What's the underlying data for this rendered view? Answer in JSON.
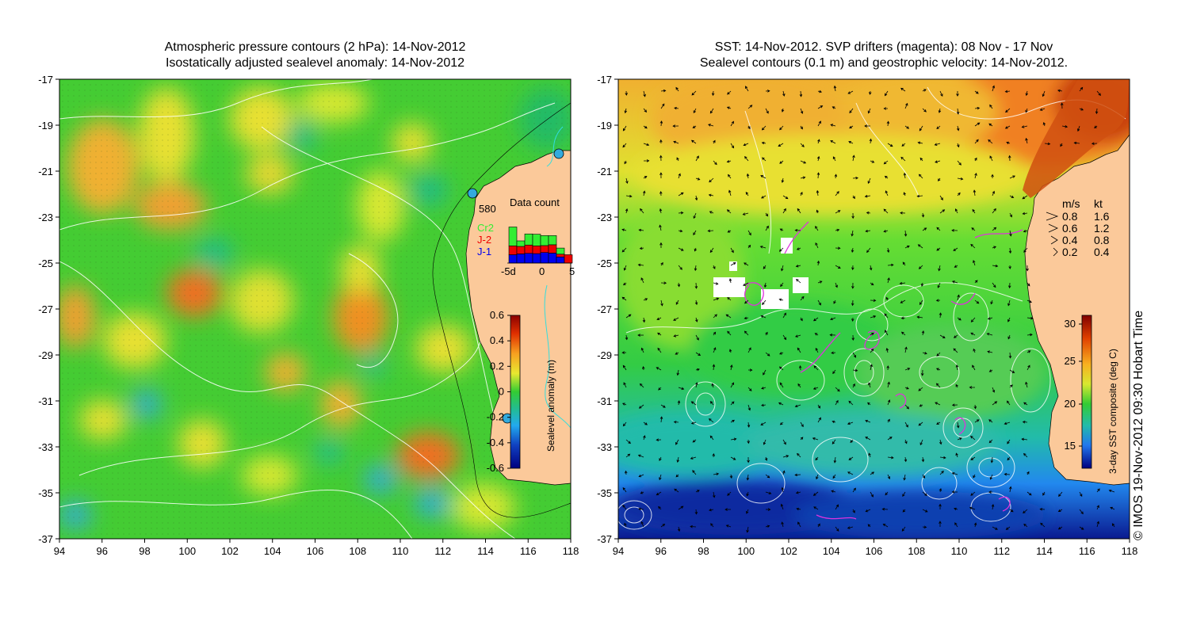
{
  "left_panel": {
    "title_line1": "Atmospheric pressure contours (2 hPa): 14-Nov-2012",
    "title_line2": "Isostatically adjusted sealevel anomaly: 14-Nov-2012",
    "x_ticks": [
      "94",
      "96",
      "98",
      "100",
      "102",
      "104",
      "106",
      "108",
      "110",
      "112",
      "114",
      "116",
      "118"
    ],
    "y_ticks": [
      "-17",
      "-19",
      "-21",
      "-23",
      "-25",
      "-27",
      "-29",
      "-31",
      "-33",
      "-35",
      "-37"
    ],
    "station_label": "580",
    "data_count": {
      "title": "Data count",
      "legend": [
        "Cr2",
        "J-2",
        "J-1"
      ],
      "x_labels": [
        "-5d",
        "0",
        "5"
      ],
      "colors": {
        "Cr2": "#33ee33",
        "J-2": "#ee0000",
        "J-1": "#0000ee"
      },
      "bars": [
        {
          "J-1": 0.3,
          "J-2": 0.32,
          "Cr2": 0.68
        },
        {
          "J-1": 0.33,
          "J-2": 0.27,
          "Cr2": 0.2
        },
        {
          "J-1": 0.35,
          "J-2": 0.3,
          "Cr2": 0.4
        },
        {
          "J-1": 0.34,
          "J-2": 0.28,
          "Cr2": 0.42
        },
        {
          "J-1": 0.38,
          "J-2": 0.25,
          "Cr2": 0.36
        },
        {
          "J-1": 0.36,
          "J-2": 0.3,
          "Cr2": 0.33
        },
        {
          "J-1": 0.22,
          "J-2": 0.1,
          "Cr2": 0.22
        },
        {
          "J-1": 0.0,
          "J-2": 0.3,
          "Cr2": 0.0
        }
      ]
    },
    "colorbar": {
      "label": "Sealevel anomaly (m)",
      "ticks": [
        "0.6",
        "0.4",
        "0.2",
        "0",
        "-0.2",
        "-0.4",
        "-0.6"
      ]
    }
  },
  "right_panel": {
    "title_line1": "SST: 14-Nov-2012. SVP drifters (magenta): 08 Nov - 17 Nov",
    "title_line2": "Sealevel contours (0.1 m) and geostrophic velocity: 14-Nov-2012.",
    "x_ticks": [
      "94",
      "96",
      "98",
      "100",
      "102",
      "104",
      "106",
      "108",
      "110",
      "112",
      "114",
      "116",
      "118"
    ],
    "y_ticks": [
      "-17",
      "-19",
      "-21",
      "-23",
      "-25",
      "-27",
      "-29",
      "-31",
      "-33",
      "-35",
      "-37"
    ],
    "velocity_legend": {
      "header_ms": "m/s",
      "header_kt": "kt",
      "rows": [
        {
          "ms": "0.8",
          "kt": "1.6"
        },
        {
          "ms": "0.6",
          "kt": "1.2"
        },
        {
          "ms": "0.4",
          "kt": "0.8"
        },
        {
          "ms": "0.2",
          "kt": "0.4"
        }
      ]
    },
    "colorbar": {
      "label": "3-day SST composite (deg C)",
      "ticks": [
        "30",
        "25",
        "20",
        "15"
      ]
    }
  },
  "credit": "© IMOS 19-Nov-2012 09:30 Hobart Time",
  "colors": {
    "land": "#fbc99a",
    "sla_base": "#33cc33",
    "sst_base": "#33cc33",
    "contour": "#ffffff",
    "drifter": "#dd33dd"
  }
}
